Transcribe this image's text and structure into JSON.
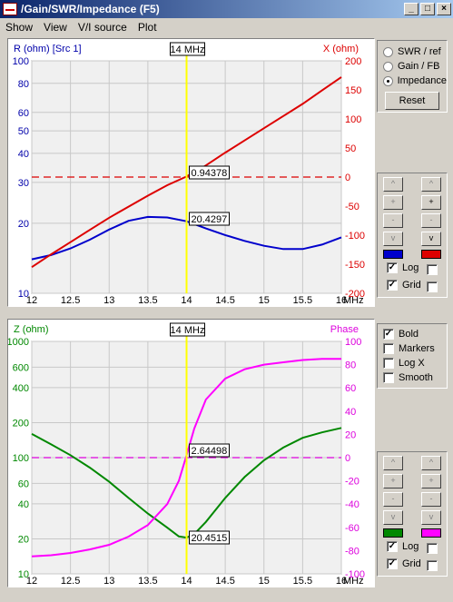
{
  "window": {
    "title": "/Gain/SWR/Impedance (F5)",
    "buttons": {
      "minimize": "_",
      "maximize": "□",
      "close": "×"
    }
  },
  "menu": {
    "items": [
      "Show",
      "View",
      "V/I source",
      "Plot"
    ]
  },
  "mode_panel": {
    "options": [
      {
        "label": "SWR / ref",
        "selected": false
      },
      {
        "label": "Gain / FB",
        "selected": false
      },
      {
        "label": "Impedance",
        "selected": true
      }
    ],
    "reset_label": "Reset"
  },
  "scale_panel_top": {
    "arrows": {
      "up": "^",
      "plus": "+",
      "minus": "-",
      "down": "v"
    },
    "left_color": "#0000cc",
    "right_color": "#dd0000",
    "log_label": "Log",
    "log_left_checked": true,
    "log_right_checked": false,
    "grid_label": "Grid",
    "grid_left_checked": true,
    "grid_right_checked": false
  },
  "options_panel": {
    "items": [
      {
        "label": "Bold",
        "checked": true
      },
      {
        "label": "Markers",
        "checked": false
      },
      {
        "label": "Log X",
        "checked": false
      },
      {
        "label": "Smooth",
        "checked": false
      }
    ]
  },
  "scale_panel_bottom": {
    "arrows": {
      "up": "^",
      "plus": "+",
      "minus": "-",
      "down": "v"
    },
    "left_color": "#008800",
    "right_color": "#ff00ff",
    "log_label": "Log",
    "log_left_checked": true,
    "log_right_checked": false,
    "grid_label": "Grid",
    "grid_left_checked": true,
    "grid_right_checked": false
  },
  "chart_data": [
    {
      "type": "line",
      "left_label": "R (ohm) [Src 1]",
      "right_label": "X (ohm)",
      "x_unit": "MHz",
      "xlim": [
        12,
        16
      ],
      "x_ticks": [
        "12",
        "12.5",
        "13",
        "13.5",
        "14",
        "14.5",
        "15",
        "15.5",
        "16"
      ],
      "y_left_scale": "log",
      "ylim_left": [
        10,
        100
      ],
      "y_left_ticks": [
        "100",
        "80",
        "60",
        "50",
        "40",
        "30",
        "20",
        "10"
      ],
      "ylim_right": [
        -200,
        200
      ],
      "y_right_ticks": [
        "200",
        "150",
        "100",
        "50",
        "0",
        "-50",
        "-100",
        "-150",
        "-200"
      ],
      "marker": {
        "label": "14 MHz",
        "x": 14
      },
      "reference_line": {
        "axis": "right",
        "value": 0
      },
      "readouts": [
        "0.94378",
        "20.4297"
      ],
      "series": [
        {
          "name": "R",
          "axis": "left",
          "color": "#0000cc",
          "x": [
            12,
            12.25,
            12.5,
            12.75,
            13,
            13.25,
            13.5,
            13.75,
            14,
            14.25,
            14.5,
            14.75,
            15,
            15.25,
            15.5,
            15.75,
            16
          ],
          "y": [
            14.0,
            14.6,
            15.6,
            17.0,
            18.8,
            20.5,
            21.3,
            21.2,
            20.4,
            19.0,
            17.8,
            16.8,
            16.0,
            15.5,
            15.5,
            16.2,
            17.4
          ]
        },
        {
          "name": "X",
          "axis": "right",
          "color": "#dd0000",
          "x": [
            12,
            12.25,
            12.5,
            12.75,
            13,
            13.25,
            13.5,
            13.75,
            14,
            14.25,
            14.5,
            14.75,
            15,
            15.25,
            15.5,
            15.75,
            16
          ],
          "y": [
            -155,
            -133,
            -112,
            -91,
            -70,
            -51,
            -32,
            -14,
            1,
            20,
            42,
            63,
            84,
            105,
            126,
            149,
            172
          ]
        }
      ]
    },
    {
      "type": "line",
      "left_label": "Z (ohm)",
      "right_label": "Phase",
      "x_unit": "MHz",
      "xlim": [
        12,
        16
      ],
      "x_ticks": [
        "12",
        "12.5",
        "13",
        "13.5",
        "14",
        "14.5",
        "15",
        "15.5",
        "16"
      ],
      "y_left_scale": "log",
      "ylim_left": [
        10,
        1000
      ],
      "y_left_ticks": [
        "1000",
        "600",
        "400",
        "200",
        "100",
        "60",
        "40",
        "20",
        "10"
      ],
      "ylim_right": [
        -100,
        100
      ],
      "y_right_ticks": [
        "100",
        "80",
        "60",
        "40",
        "20",
        "0",
        "-20",
        "-40",
        "-60",
        "-80",
        "-100"
      ],
      "marker": {
        "label": "14 MHz",
        "x": 14
      },
      "reference_line": {
        "axis": "right",
        "value": 0
      },
      "readouts": [
        "2.64498",
        "20.4515"
      ],
      "series": [
        {
          "name": "Z",
          "axis": "left",
          "color": "#008800",
          "x": [
            12,
            12.25,
            12.5,
            12.75,
            13,
            13.25,
            13.5,
            13.75,
            13.9,
            14,
            14.1,
            14.25,
            14.5,
            14.75,
            15,
            15.25,
            15.5,
            15.75,
            16
          ],
          "y": [
            160,
            130,
            105,
            82,
            62,
            45,
            33,
            25,
            21,
            20.5,
            22,
            28,
            45,
            68,
            95,
            122,
            148,
            165,
            180
          ]
        },
        {
          "name": "Phase",
          "axis": "right",
          "color": "#ff00ff",
          "x": [
            12,
            12.25,
            12.5,
            12.75,
            13,
            13.25,
            13.5,
            13.75,
            13.9,
            14,
            14.1,
            14.25,
            14.5,
            14.75,
            15,
            15.25,
            15.5,
            15.75,
            16
          ],
          "y": [
            -85,
            -84,
            -82,
            -79,
            -75,
            -68,
            -58,
            -40,
            -20,
            2,
            25,
            50,
            68,
            76,
            80,
            82,
            84,
            85,
            85
          ]
        }
      ]
    }
  ]
}
